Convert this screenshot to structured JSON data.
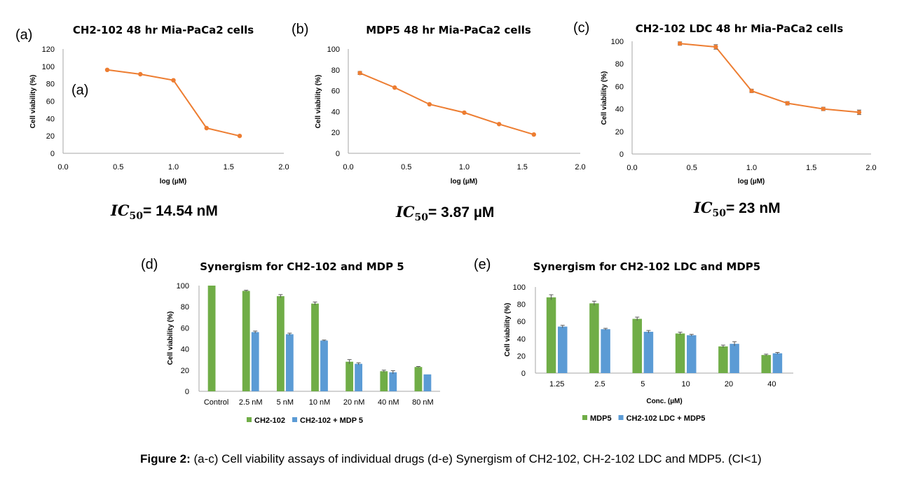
{
  "caption": {
    "lead": "Figure 2:",
    "text": " (a-c) Cell viability assays of individual drugs  (d-e) Synergism of CH2-102, CH-2-102 LDC and MDP5. (CI<1)"
  },
  "colors": {
    "line": "#ED7D31",
    "green": "#70AD47",
    "blue": "#5B9BD5",
    "axis": "#A6A6A6",
    "error": "#595959"
  },
  "ic50_symbol": "IC",
  "ic50_sub": "50",
  "chart_data": [
    {
      "id": "a",
      "type": "line",
      "panel_label": "(a)",
      "inner_label": "(a)",
      "title": "CH2-102 48 hr Mia-PaCa2 cells",
      "xlabel": "log (µM)",
      "ylabel": "Cell viability (%)",
      "xlim": [
        0,
        2
      ],
      "xticks": [
        "0.0",
        "0.5",
        "1.0",
        "1.5",
        "2.0"
      ],
      "ylim": [
        0,
        120
      ],
      "yticks": [
        "0",
        "20",
        "40",
        "60",
        "80",
        "100",
        "120"
      ],
      "x": [
        0.4,
        0.7,
        1.0,
        1.3,
        1.6
      ],
      "y": [
        96,
        91,
        84,
        29,
        20
      ],
      "err": [
        0,
        0,
        0,
        0,
        0
      ],
      "ic50_value": "= 14.54 nM"
    },
    {
      "id": "b",
      "type": "line",
      "panel_label": "(b)",
      "title": "MDP5 48 hr Mia-PaCa2 cells",
      "xlabel": "log (µM)",
      "ylabel": "Cell viability (%)",
      "xlim": [
        0,
        2
      ],
      "xticks": [
        "0.0",
        "0.5",
        "1.0",
        "1.5",
        "2.0"
      ],
      "ylim": [
        0,
        100
      ],
      "yticks": [
        "0",
        "20",
        "40",
        "60",
        "80",
        "100"
      ],
      "x": [
        0.1,
        0.4,
        0.7,
        1.0,
        1.3,
        1.6
      ],
      "y": [
        77,
        63,
        47,
        39,
        28,
        18
      ],
      "err": [
        1.5,
        0,
        0,
        0,
        0,
        0
      ],
      "ic50_value": "= 3.87 µM"
    },
    {
      "id": "c",
      "type": "line",
      "panel_label": "(c)",
      "title": "CH2-102 LDC 48 hr Mia-PaCa2 cells",
      "xlabel": "log (µM)",
      "ylabel": "Cell viability (%)",
      "xlim": [
        0,
        2
      ],
      "xticks": [
        "0.0",
        "0.5",
        "1.0",
        "1.5",
        "2.0"
      ],
      "ylim": [
        0,
        100
      ],
      "yticks": [
        "0",
        "20",
        "40",
        "60",
        "80",
        "100"
      ],
      "x": [
        0.4,
        0.7,
        1.0,
        1.3,
        1.6,
        1.9
      ],
      "y": [
        98,
        95,
        56,
        45,
        40,
        37
      ],
      "err": [
        1.5,
        2,
        1.5,
        1.5,
        1.5,
        2
      ],
      "ic50_value": "= 23 nM"
    },
    {
      "id": "d",
      "type": "bar",
      "panel_label": "(d)",
      "title": "Synergism for CH2-102 and MDP 5",
      "xlabel": "",
      "ylabel": "Cell viability (%)",
      "ylim": [
        0,
        100
      ],
      "yticks": [
        "0",
        "20",
        "40",
        "60",
        "80",
        "100"
      ],
      "categories": [
        "Control",
        "2.5 nM",
        "5 nM",
        "10 nM",
        "20 nM",
        "40 nM",
        "80 nM"
      ],
      "series": [
        {
          "name": "CH2-102",
          "color": "green",
          "values": [
            100,
            95,
            90,
            83,
            28,
            19,
            23
          ],
          "err": [
            0,
            0.6,
            1.5,
            1.5,
            2,
            1,
            0.5
          ]
        },
        {
          "name": "CH2-102 + MDP 5",
          "color": "blue",
          "values": [
            null,
            56,
            54,
            48,
            26,
            18,
            16
          ],
          "err": [
            0,
            1,
            1,
            0.5,
            1,
            1.5,
            0
          ]
        }
      ]
    },
    {
      "id": "e",
      "type": "bar",
      "panel_label": "(e)",
      "title": "Synergism for CH2-102 LDC and MDP5",
      "xlabel": "Conc. (µM)",
      "ylabel": "Cell viability (%)",
      "ylim": [
        0,
        100
      ],
      "yticks": [
        "0",
        "20",
        "40",
        "60",
        "80",
        "100"
      ],
      "categories": [
        "1.25",
        "2.5",
        "5",
        "10",
        "20",
        "40"
      ],
      "series": [
        {
          "name": "MDP5",
          "color": "green",
          "values": [
            88,
            81,
            63,
            46,
            31,
            21
          ],
          "err": [
            3,
            2.5,
            2,
            1.5,
            1.5,
            1
          ]
        },
        {
          "name": "CH2-102 LDC + MDP5",
          "color": "blue",
          "values": [
            54,
            51,
            48,
            44,
            34,
            23
          ],
          "err": [
            1.5,
            1,
            1.5,
            1,
            2.5,
            1
          ]
        }
      ]
    }
  ]
}
